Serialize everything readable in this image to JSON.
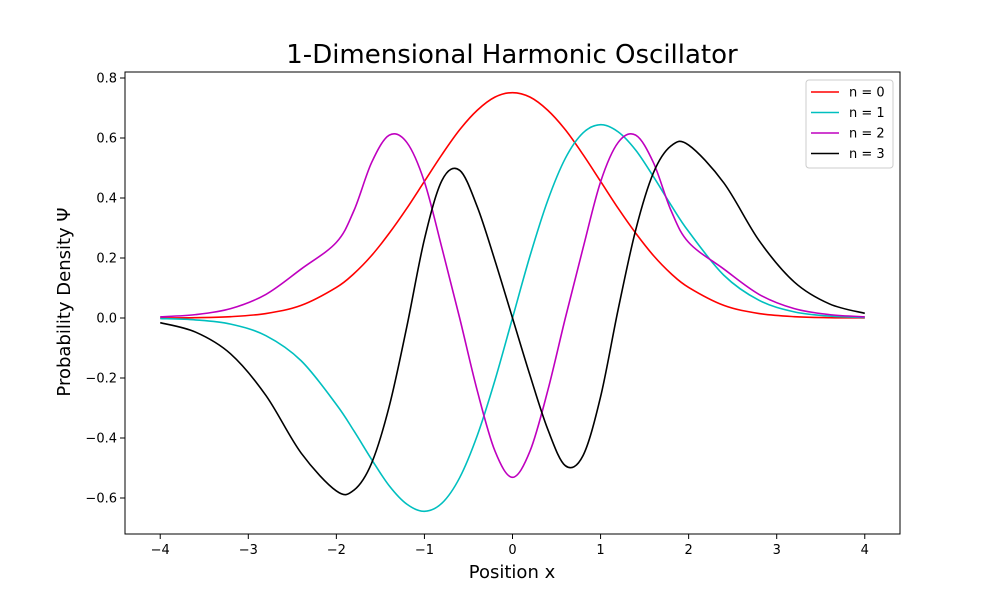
{
  "chart_data": {
    "type": "line",
    "title": "1-Dimensional Harmonic Oscillator",
    "xlabel": "Position x",
    "ylabel": "Probability Density Ψ",
    "xlim": [
      -4.4,
      4.4
    ],
    "ylim": [
      -0.72,
      0.82
    ],
    "xticks": [
      -4,
      -3,
      -2,
      -1,
      0,
      1,
      2,
      3,
      4
    ],
    "xtick_labels": [
      "−4",
      "−3",
      "−2",
      "−1",
      "0",
      "1",
      "2",
      "3",
      "4"
    ],
    "yticks": [
      -0.6,
      -0.4,
      -0.2,
      0.0,
      0.2,
      0.4,
      0.6,
      0.8
    ],
    "ytick_labels": [
      "−0.6",
      "−0.4",
      "−0.2",
      "0.0",
      "0.2",
      "0.4",
      "0.6",
      "0.8"
    ],
    "grid": false,
    "legend_position": "top-right",
    "x": [
      -4.0,
      -3.6,
      -3.2,
      -2.8,
      -2.4,
      -2.0,
      -1.8,
      -1.6,
      -1.4,
      -1.2,
      -1.0,
      -0.8,
      -0.6,
      -0.4,
      -0.2,
      0.0,
      0.2,
      0.4,
      0.6,
      0.8,
      1.0,
      1.2,
      1.4,
      1.6,
      1.8,
      2.0,
      2.4,
      2.8,
      3.2,
      3.6,
      4.0
    ],
    "series": [
      {
        "name": "n = 0",
        "color": "#ff0000",
        "values": [
          0.0003,
          0.0012,
          0.0045,
          0.0149,
          0.042,
          0.1019,
          0.148,
          0.2083,
          0.2824,
          0.3656,
          0.4556,
          0.5453,
          0.6274,
          0.6925,
          0.7362,
          0.7511,
          0.7362,
          0.6925,
          0.6274,
          0.5453,
          0.4556,
          0.3656,
          0.2824,
          0.2083,
          0.148,
          0.1019,
          0.042,
          0.0149,
          0.0045,
          0.0012,
          0.0003
        ]
      },
      {
        "name": "n = 1",
        "color": "#00bfbf",
        "values": [
          -0.0018,
          -0.0063,
          -0.0204,
          -0.059,
          -0.1425,
          -0.2882,
          -0.3766,
          -0.4713,
          -0.5592,
          -0.6205,
          -0.6443,
          -0.6169,
          -0.5323,
          -0.3917,
          -0.2082,
          0.0,
          0.2082,
          0.3917,
          0.5323,
          0.6169,
          0.6443,
          0.6205,
          0.5592,
          0.4713,
          0.3766,
          0.2882,
          0.1425,
          0.059,
          0.0204,
          0.0063,
          0.0018
        ]
      },
      {
        "name": "n = 2",
        "color": "#bf00bf",
        "values": [
          0.0039,
          0.0112,
          0.0312,
          0.0787,
          0.1631,
          0.2521,
          0.3583,
          0.5181,
          0.6093,
          0.5852,
          0.4538,
          0.2319,
          0.0,
          -0.2424,
          -0.4428,
          -0.5311,
          -0.4428,
          -0.2424,
          0.0,
          0.2319,
          0.4538,
          0.5852,
          0.6093,
          0.5181,
          0.3583,
          0.2521,
          0.1631,
          0.0787,
          0.0312,
          0.0112,
          0.0039
        ]
      },
      {
        "name": "n = 3",
        "color": "#000000",
        "values": [
          -0.0157,
          -0.0469,
          -0.1198,
          -0.2582,
          -0.4502,
          -0.5765,
          -0.5737,
          -0.4838,
          -0.2949,
          -0.0289,
          0.2628,
          0.4592,
          0.4923,
          0.3707,
          0.1922,
          0.0,
          -0.1922,
          -0.3707,
          -0.4923,
          -0.4592,
          -0.2628,
          0.0289,
          0.2949,
          0.4838,
          0.5737,
          0.5765,
          0.4502,
          0.2582,
          0.1198,
          0.0469,
          0.0157
        ]
      }
    ]
  }
}
